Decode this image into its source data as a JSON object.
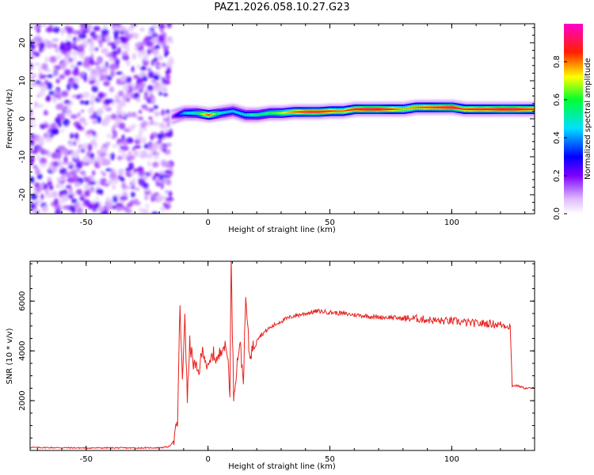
{
  "title": "PAZ1.2026.058.10.27.G23",
  "chart_data": [
    {
      "type": "heatmap",
      "title": "PAZ1.2026.058.10.27.G23",
      "xlabel": "Height of straight line (km)",
      "ylabel": "Frequency (Hz)",
      "xlim": [
        -73,
        134
      ],
      "ylim": [
        -25,
        25
      ],
      "xticks": [
        -50,
        0,
        50,
        100
      ],
      "xtick_labels": [
        "-50",
        "0",
        "50",
        "100"
      ],
      "yticks": [
        -20,
        -10,
        0,
        10,
        20
      ],
      "ytick_labels": [
        "-20",
        "-10",
        "0",
        "10",
        "20"
      ],
      "noise_region_x": [
        -73,
        -15
      ],
      "signal_start_x": -15,
      "ridge": [
        {
          "x": -15,
          "freq": 0.5,
          "amp": 0.15
        },
        {
          "x": -10,
          "freq": 1.5,
          "amp": 0.45
        },
        {
          "x": -5,
          "freq": 1.5,
          "amp": 0.55
        },
        {
          "x": 0,
          "freq": 1.0,
          "amp": 0.85
        },
        {
          "x": 5,
          "freq": 1.5,
          "amp": 0.5
        },
        {
          "x": 10,
          "freq": 2.0,
          "amp": 0.45
        },
        {
          "x": 15,
          "freq": 1.0,
          "amp": 0.5
        },
        {
          "x": 20,
          "freq": 1.0,
          "amp": 0.55
        },
        {
          "x": 25,
          "freq": 1.5,
          "amp": 0.6
        },
        {
          "x": 30,
          "freq": 1.5,
          "amp": 0.7
        },
        {
          "x": 35,
          "freq": 1.8,
          "amp": 0.8
        },
        {
          "x": 40,
          "freq": 1.8,
          "amp": 0.9
        },
        {
          "x": 45,
          "freq": 1.8,
          "amp": 0.92
        },
        {
          "x": 50,
          "freq": 2.0,
          "amp": 0.85
        },
        {
          "x": 55,
          "freq": 2.0,
          "amp": 0.8
        },
        {
          "x": 60,
          "freq": 2.5,
          "amp": 0.9
        },
        {
          "x": 65,
          "freq": 2.5,
          "amp": 0.95
        },
        {
          "x": 70,
          "freq": 2.5,
          "amp": 0.95
        },
        {
          "x": 75,
          "freq": 2.5,
          "amp": 0.85
        },
        {
          "x": 80,
          "freq": 2.5,
          "amp": 0.75
        },
        {
          "x": 85,
          "freq": 3.0,
          "amp": 0.8
        },
        {
          "x": 90,
          "freq": 3.0,
          "amp": 0.85
        },
        {
          "x": 95,
          "freq": 3.0,
          "amp": 0.9
        },
        {
          "x": 100,
          "freq": 3.0,
          "amp": 0.95
        },
        {
          "x": 105,
          "freq": 2.5,
          "amp": 0.85
        },
        {
          "x": 110,
          "freq": 2.5,
          "amp": 0.9
        },
        {
          "x": 115,
          "freq": 2.5,
          "amp": 0.9
        },
        {
          "x": 120,
          "freq": 2.5,
          "amp": 0.95
        },
        {
          "x": 125,
          "freq": 2.5,
          "amp": 0.95
        },
        {
          "x": 130,
          "freq": 2.5,
          "amp": 0.9
        },
        {
          "x": 134,
          "freq": 2.5,
          "amp": 0.85
        }
      ],
      "colorbar": {
        "label": "Normalized spectral amplitude",
        "range": [
          0,
          1
        ],
        "ticks": [
          0.0,
          0.2,
          0.4,
          0.6,
          0.8
        ],
        "tick_labels": [
          "0.0",
          "0.2",
          "0.4",
          "0.6",
          "0.8"
        ],
        "colors": [
          "#ffffff",
          "#7f00ff",
          "#0000ff",
          "#00ffff",
          "#00ff00",
          "#ffff00",
          "#ff0000",
          "#ff00ff"
        ]
      }
    },
    {
      "type": "line",
      "xlabel": "Height of straight line (km)",
      "ylabel": "SNR (10 * v/v)",
      "xlim": [
        -73,
        134
      ],
      "ylim": [
        0,
        7600
      ],
      "xticks": [
        -50,
        0,
        50,
        100
      ],
      "xtick_labels": [
        "-50",
        "0",
        "50",
        "100"
      ],
      "yticks": [
        2000,
        4000,
        6000
      ],
      "ytick_labels": [
        "2000",
        "4000",
        "6000"
      ],
      "color": "#e8201c",
      "series": [
        {
          "name": "SNR",
          "x": [
            -73,
            -60,
            -50,
            -40,
            -30,
            -20,
            -16,
            -14,
            -12.5,
            -11.5,
            -10.5,
            -9.5,
            -8.5,
            -7.5,
            -6,
            -4,
            -2,
            0,
            2,
            4,
            6,
            8,
            9,
            9.5,
            10.5,
            11.5,
            13,
            14.5,
            15.5,
            17,
            20,
            25,
            30,
            35,
            40,
            45,
            50,
            55,
            60,
            65,
            70,
            75,
            80,
            85,
            90,
            95,
            100,
            105,
            110,
            115,
            120,
            124,
            124.8,
            125.5,
            127,
            130,
            134
          ],
          "y": [
            120,
            110,
            100,
            105,
            100,
            110,
            150,
            400,
            1100,
            5900,
            2600,
            5600,
            2000,
            4300,
            3500,
            3100,
            4100,
            3200,
            3900,
            3600,
            4300,
            3900,
            2400,
            7600,
            2200,
            3100,
            4400,
            2800,
            6100,
            3800,
            4500,
            4900,
            5200,
            5400,
            5500,
            5600,
            5550,
            5500,
            5450,
            5400,
            5350,
            5350,
            5300,
            5300,
            5250,
            5200,
            5200,
            5150,
            5100,
            5100,
            5050,
            5000,
            2600,
            2600,
            2600,
            2500,
            2500
          ]
        }
      ]
    }
  ]
}
